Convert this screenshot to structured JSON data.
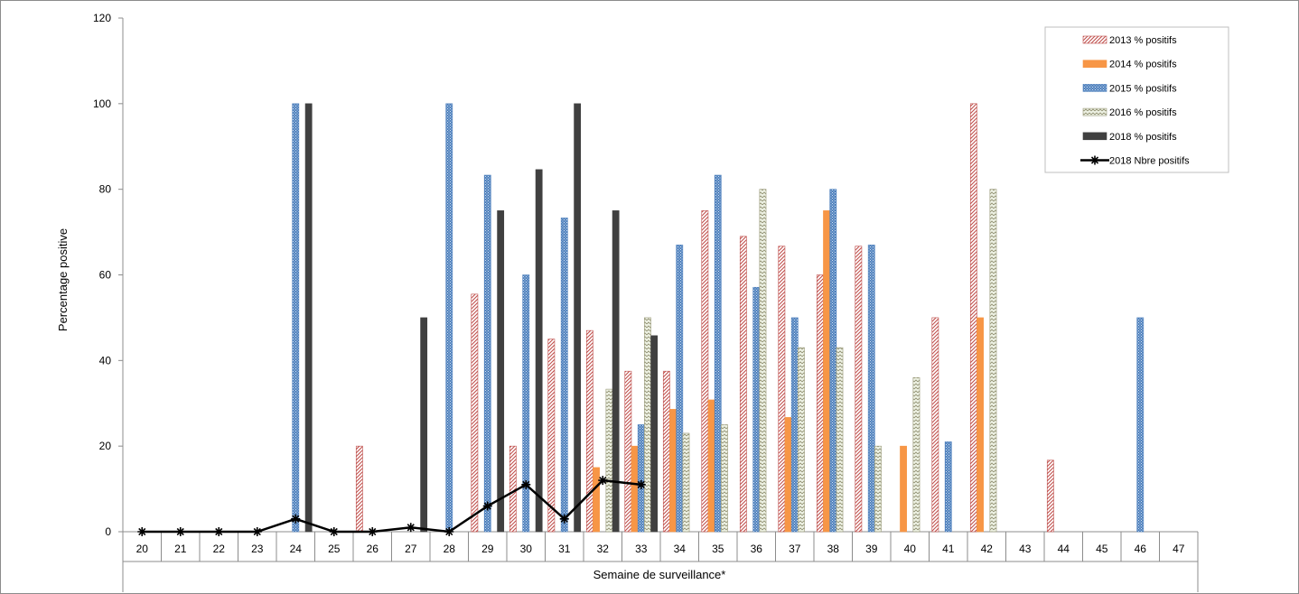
{
  "chart_data": {
    "type": "bar",
    "title": "",
    "xlabel": "Semaine de surveillance*",
    "ylabel": "Percentage positive",
    "ylim": [
      0,
      120
    ],
    "yticks": [
      0,
      20,
      40,
      60,
      80,
      100,
      120
    ],
    "categories": [
      "20",
      "21",
      "22",
      "23",
      "24",
      "25",
      "26",
      "27",
      "28",
      "29",
      "30",
      "31",
      "32",
      "33",
      "34",
      "35",
      "36",
      "37",
      "38",
      "39",
      "40",
      "41",
      "42",
      "43",
      "44",
      "45",
      "46",
      "47"
    ],
    "legend_position": "top-right",
    "series": [
      {
        "name": "2013 % positifs",
        "kind": "bar",
        "pattern": "diag",
        "color": "#c0504d",
        "values": [
          null,
          null,
          null,
          null,
          null,
          null,
          20,
          null,
          null,
          55.5,
          20,
          45,
          47,
          37.5,
          37.5,
          75,
          69,
          66.7,
          60,
          66.7,
          null,
          50,
          100,
          null,
          16.7,
          null,
          null,
          null
        ]
      },
      {
        "name": "2014 % positifs",
        "kind": "bar",
        "pattern": "solid",
        "color": "#f79646",
        "values": [
          null,
          null,
          null,
          null,
          null,
          null,
          null,
          null,
          null,
          null,
          null,
          null,
          15,
          20,
          28.6,
          30.8,
          null,
          26.7,
          75,
          null,
          20,
          null,
          50,
          null,
          null,
          null,
          null,
          null
        ]
      },
      {
        "name": "2015 % positifs",
        "kind": "bar",
        "pattern": "dots",
        "color": "#4f81bd",
        "values": [
          null,
          null,
          null,
          null,
          100,
          null,
          null,
          null,
          100,
          83.3,
          60,
          73.3,
          null,
          25,
          67,
          83.3,
          57.1,
          50,
          80,
          67,
          null,
          21,
          null,
          null,
          null,
          null,
          50,
          null
        ]
      },
      {
        "name": "2016 % positifs",
        "kind": "bar",
        "pattern": "zigzag",
        "color": "#9bbb59",
        "values": [
          null,
          null,
          null,
          null,
          null,
          null,
          null,
          null,
          null,
          null,
          null,
          null,
          33.3,
          50,
          23,
          25,
          80,
          43,
          43,
          20,
          36,
          null,
          80,
          null,
          null,
          null,
          null,
          null
        ]
      },
      {
        "name": "2018 % positifs",
        "kind": "bar",
        "pattern": "solid",
        "color": "#404040",
        "values": [
          null,
          null,
          null,
          null,
          100,
          null,
          null,
          50,
          null,
          75,
          84.6,
          100,
          75,
          45.8,
          null,
          null,
          null,
          null,
          null,
          null,
          null,
          null,
          null,
          null,
          null,
          null,
          null,
          null
        ]
      },
      {
        "name": "2018 Nbre positifs",
        "kind": "line",
        "marker": "star",
        "color": "#000000",
        "values": [
          0,
          0,
          0,
          0,
          3,
          0,
          0,
          1,
          0,
          6,
          11,
          3,
          12,
          11,
          null,
          null,
          null,
          null,
          null,
          null,
          null,
          null,
          null,
          null,
          null,
          null,
          null,
          null
        ]
      }
    ]
  }
}
